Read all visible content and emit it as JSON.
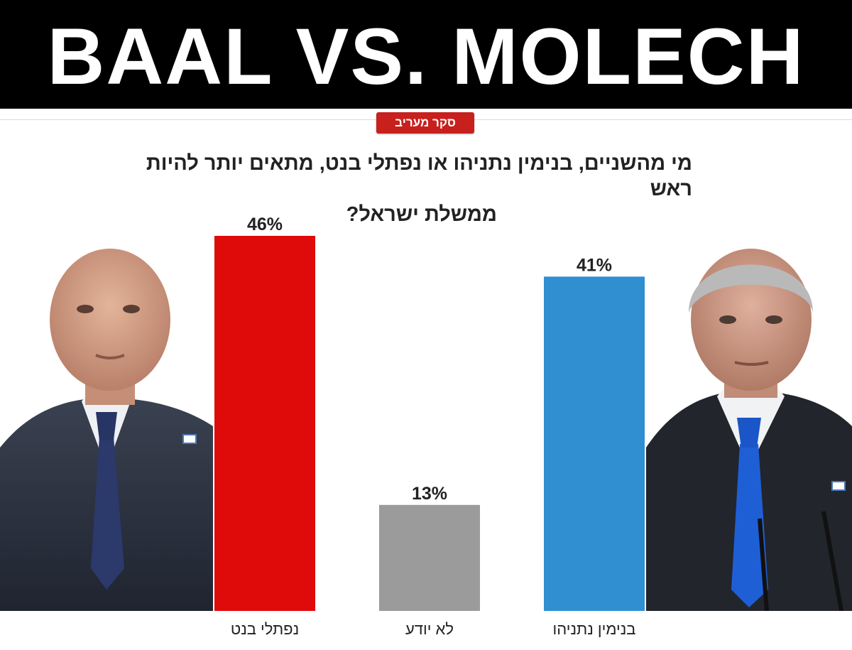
{
  "banner": {
    "title": "BAAL VS. MOLECH"
  },
  "poll_badge": {
    "label": "סקר מעריב"
  },
  "colors": {
    "bar_bennett": "#df0a0a",
    "bar_unknown": "#9b9b9b",
    "bar_netanyahu": "#2f8fd1",
    "badge": "#c8201d"
  },
  "chart_data": {
    "type": "bar",
    "title_line1": "מי מהשניים, בנימין נתניהו או נפתלי בנט, מתאים יותר להיות ראש",
    "title_line2": "ממשלת ישראל?",
    "categories": [
      "נפתלי בנט",
      "לא יודע",
      "בנימין נתניהו"
    ],
    "values": [
      46,
      13,
      41
    ],
    "value_labels": [
      "46%",
      "13%",
      "41%"
    ],
    "colors": [
      "#df0a0a",
      "#9b9b9b",
      "#2f8fd1"
    ],
    "ylim": [
      0,
      46
    ],
    "grid": false,
    "xlabel": "",
    "ylabel": ""
  },
  "photos": {
    "left": "portrait-bald-man-dark-suit",
    "right": "portrait-gray-haired-man-blue-tie"
  }
}
